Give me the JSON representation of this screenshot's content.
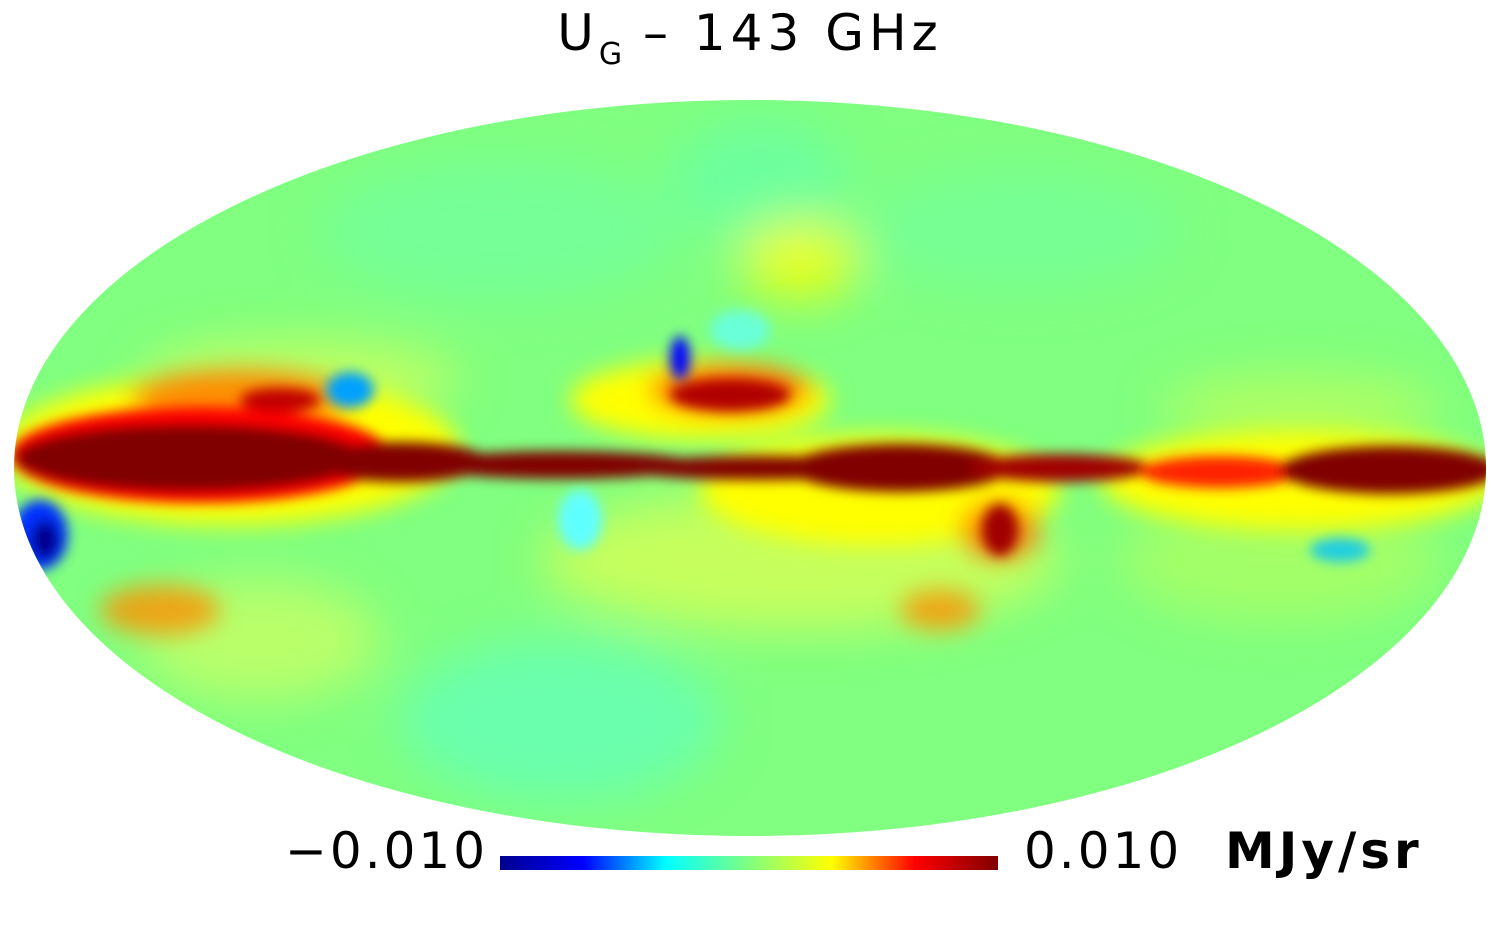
{
  "map": {
    "title_main": "U",
    "title_sub": "G",
    "title_rest": " – 143 GHz",
    "projection": "mollweide",
    "colormap": "jet",
    "background_color": "#80ff80"
  },
  "colorbar": {
    "min_label": "−0.010",
    "max_label": "0.010",
    "unit": "MJy/sr",
    "min_value": -0.01,
    "max_value": 0.01,
    "stops": [
      "#00008f",
      "#0000ff",
      "#00ffff",
      "#80ff80",
      "#ffff00",
      "#ff0000",
      "#800000"
    ]
  }
}
